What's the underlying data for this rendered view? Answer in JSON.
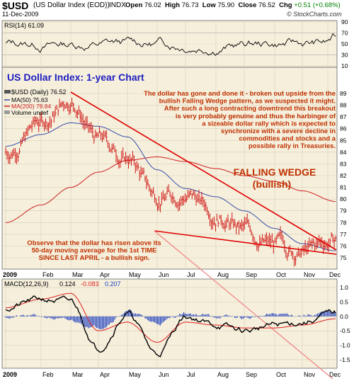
{
  "header": {
    "ticker": "$USD",
    "name": "(US Dollar Index (EOD))",
    "exchange": "INDX",
    "date": "11-Dec-2009",
    "open_label": "Open",
    "open": "76.02",
    "high_label": "High",
    "high": "76.73",
    "low_label": "Low",
    "low": "75.90",
    "close_label": "Close",
    "close": "76.52",
    "chg_label": "Chg",
    "chg": "+0.51 (+0.68%)",
    "logo": "© StockCharts.com"
  },
  "colors": {
    "panel_bg": "#f5efdc",
    "price_bar": "#cc0000",
    "ma50": "#3b4fa8",
    "ma200": "#d02020",
    "wedge": "#e00000",
    "annotation": "#c03000",
    "title": "#2020c0",
    "macd": "#000000",
    "signal": "#e02020",
    "hist": "#2040c0"
  },
  "rsi": {
    "label": "RSI(14) 61.09",
    "ticks": [
      "90",
      "70",
      "50",
      "30",
      "10"
    ]
  },
  "chart_title": "US Dollar Index: 1-year Chart",
  "legend": {
    "price": "$USD (Daily) 76.52",
    "ma50": "MA(50) 75.63",
    "ma200": "MA(200) 79.84",
    "volume": "Volume undef"
  },
  "annotations": {
    "main": [
      "The dollar has gone and done it - broken out upside from the",
      "bullish Falling Wedge pattern, as we suspected it might.",
      "After such a long contracting downtrend this breakout",
      "is very probably genuine and thus the harbinger of",
      "a sizeable dollar rally which is expected to",
      "synchronize with a severe decline in",
      "commodities and stocks and a",
      "possible rally in Treasuries."
    ],
    "wedge_title": "FALLING WEDGE",
    "wedge_sub": "(bullish)",
    "observe": [
      "Observe that the dollar has risen above its",
      "50-day moving average for the 1st TIME",
      "SINCE LAST APRIL - a bullish sign."
    ]
  },
  "price_axis": [
    "89",
    "88",
    "87",
    "86",
    "85",
    "84",
    "83",
    "82",
    "81",
    "80",
    "79",
    "78",
    "77",
    "76",
    "75"
  ],
  "months": [
    "2009",
    "Feb",
    "Mar",
    "Apr",
    "May",
    "Jun",
    "Jul",
    "Aug",
    "Sep",
    "Oct",
    "Nov",
    "Dec"
  ],
  "macd": {
    "label": "MACD(12,26,9)",
    "macd_value": "0.124",
    "signal_value": "-0.083",
    "hist_value": "0.207",
    "ticks": [
      "1.0",
      "0.5",
      "0.0",
      "-0.5",
      "-1.0",
      "-1.5"
    ]
  },
  "chart_data": {
    "type": "line",
    "title": "US Dollar Index: 1-year Chart",
    "x": [
      "2009-01",
      "2009-02",
      "2009-03",
      "2009-04",
      "2009-05",
      "2009-06",
      "2009-07",
      "2009-08",
      "2009-09",
      "2009-10",
      "2009-11",
      "2009-12"
    ],
    "series": [
      {
        "name": "$USD (Daily) 76.52",
        "values": [
          84.0,
          86.5,
          88.5,
          85.0,
          83.5,
          80.3,
          80.5,
          79.0,
          77.3,
          76.0,
          75.5,
          76.5
        ]
      },
      {
        "name": "MA(50) 75.63",
        "values": [
          84.5,
          85.5,
          86.5,
          86.2,
          85.3,
          82.5,
          80.9,
          80.2,
          79.0,
          77.5,
          76.2,
          75.6
        ]
      },
      {
        "name": "MA(200) 79.84",
        "values": [
          78.0,
          79.5,
          81.0,
          82.3,
          83.3,
          83.6,
          83.2,
          82.6,
          82.0,
          81.5,
          80.7,
          79.8
        ]
      }
    ],
    "ylim": [
      74.5,
      89.8
    ],
    "rsi_ylim": [
      10,
      90
    ],
    "macd_ylim": [
      -1.7,
      1.1
    ]
  }
}
